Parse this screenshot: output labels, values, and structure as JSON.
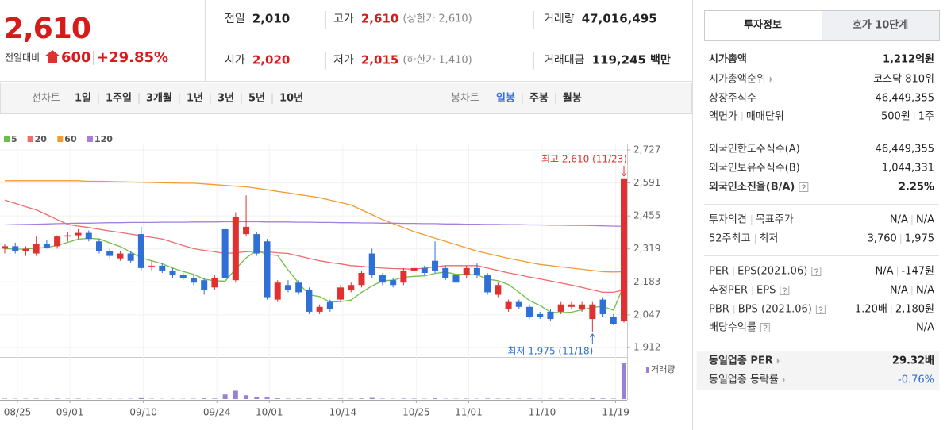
{
  "quote": {
    "price": "2,610",
    "change_label": "전일대비",
    "change": "600",
    "change_rate": "+29.85%"
  },
  "summary": {
    "rows": [
      [
        {
          "label": "전일",
          "value": "2,010"
        },
        {
          "label": "고가",
          "value": "2,610",
          "color": "#d61b1b",
          "note": "(상한가 2,610)"
        },
        {
          "label": "거래량",
          "value": "47,016,495"
        }
      ],
      [
        {
          "label": "시가",
          "value": "2,020",
          "color": "#d61b1b"
        },
        {
          "label": "저가",
          "value": "2,015",
          "color": "#d61b1b",
          "note": "(하한가 1,410)"
        },
        {
          "label": "거래대금",
          "value": "119,245",
          "unit": "백만"
        }
      ]
    ]
  },
  "toolbar": {
    "line_label": "선차트",
    "line_periods": [
      "1일",
      "1주일",
      "3개월",
      "1년",
      "3년",
      "5년",
      "10년"
    ],
    "candle_label": "봉차트",
    "candle_periods": [
      "일봉",
      "주봉",
      "월봉"
    ]
  },
  "chart_data": {
    "type": "candlestick",
    "categories": [
      "08/25",
      null,
      null,
      null,
      null,
      "09/01",
      null,
      null,
      null,
      null,
      null,
      null,
      "09/10",
      null,
      null,
      null,
      null,
      null,
      null,
      "09/24",
      null,
      null,
      null,
      null,
      "10/01",
      null,
      null,
      null,
      null,
      null,
      null,
      "10/14",
      null,
      null,
      null,
      null,
      null,
      null,
      "10/25",
      null,
      null,
      null,
      null,
      "11/01",
      null,
      null,
      null,
      null,
      null,
      null,
      "11/10",
      null,
      null,
      null,
      null,
      null,
      null,
      "11/19",
      null,
      null
    ],
    "open": [
      2320,
      2330,
      2310,
      2300,
      2340,
      2330,
      2370,
      2375,
      2385,
      2350,
      2310,
      2280,
      2300,
      2380,
      2250,
      2250,
      2230,
      2210,
      2200,
      2190,
      2160,
      2400,
      2190,
      2380,
      2380,
      2350,
      2110,
      2170,
      2180,
      2150,
      2060,
      2100,
      2110,
      2150,
      2170,
      2300,
      2210,
      2190,
      2180,
      2230,
      2240,
      2270,
      2240,
      2210,
      2210,
      2240,
      2210,
      2130,
      2070,
      2100,
      2080,
      2050,
      2060,
      2060,
      2080,
      2070,
      2030,
      2110,
      2040,
      2020
    ],
    "high": [
      2340,
      2345,
      2330,
      2370,
      2355,
      2375,
      2390,
      2400,
      2395,
      2360,
      2320,
      2310,
      2310,
      2410,
      2270,
      2260,
      2240,
      2220,
      2210,
      2200,
      2210,
      2410,
      2470,
      2540,
      2390,
      2360,
      2190,
      2190,
      2190,
      2160,
      2090,
      2110,
      2170,
      2180,
      2230,
      2320,
      2220,
      2200,
      2240,
      2280,
      2250,
      2350,
      2250,
      2220,
      2250,
      2260,
      2220,
      2180,
      2110,
      2110,
      2090,
      2060,
      2070,
      2100,
      2100,
      2100,
      2100,
      2120,
      2050,
      2610
    ],
    "low": [
      2300,
      2300,
      2290,
      2290,
      2320,
      2320,
      2350,
      2360,
      2350,
      2300,
      2280,
      2270,
      2260,
      2230,
      2230,
      2220,
      2200,
      2190,
      2170,
      2130,
      2150,
      2190,
      2180,
      2370,
      2290,
      2110,
      2100,
      2140,
      2130,
      2050,
      2050,
      2060,
      2100,
      2140,
      2160,
      2200,
      2170,
      2160,
      2170,
      2220,
      2210,
      2220,
      2190,
      2170,
      2200,
      2200,
      2130,
      2120,
      2060,
      2070,
      2030,
      2030,
      2020,
      2050,
      2070,
      2060,
      1975,
      2040,
      2005,
      2015
    ],
    "close": [
      2330,
      2310,
      2320,
      2340,
      2325,
      2370,
      2375,
      2385,
      2360,
      2310,
      2290,
      2300,
      2270,
      2240,
      2250,
      2230,
      2210,
      2200,
      2180,
      2150,
      2200,
      2200,
      2450,
      2410,
      2300,
      2120,
      2180,
      2150,
      2140,
      2060,
      2080,
      2070,
      2160,
      2170,
      2220,
      2210,
      2180,
      2170,
      2230,
      2240,
      2220,
      2230,
      2200,
      2180,
      2240,
      2210,
      2140,
      2170,
      2100,
      2080,
      2040,
      2040,
      2030,
      2090,
      2090,
      2090,
      2090,
      2050,
      2010,
      2610
    ],
    "up_color": "#e03030",
    "down_color": "#2f6fd6",
    "series": [
      {
        "name": "5",
        "color": "#6cc04a",
        "values": [
          2320,
          2318,
          2318,
          2322,
          2325,
          2333,
          2346,
          2359,
          2363,
          2360,
          2344,
          2329,
          2306,
          2282,
          2270,
          2258,
          2240,
          2226,
          2214,
          2194,
          2188,
          2186,
          2236,
          2282,
          2312,
          2296,
          2292,
          2232,
          2178,
          2130,
          2122,
          2100,
          2102,
          2108,
          2140,
          2166,
          2188,
          2190,
          2202,
          2206,
          2208,
          2218,
          2224,
          2214,
          2214,
          2212,
          2194,
          2188,
          2172,
          2140,
          2106,
          2086,
          2058,
          2056,
          2058,
          2068,
          2078,
          2082,
          2066,
          2170
        ]
      },
      {
        "name": "20",
        "color": "#f06b6b",
        "values": [
          2520,
          2507,
          2493,
          2480,
          2460,
          2440,
          2420,
          2413,
          2407,
          2400,
          2393,
          2387,
          2380,
          2373,
          2367,
          2360,
          2347,
          2333,
          2320,
          2313,
          2307,
          2300,
          2303,
          2307,
          2310,
          2307,
          2303,
          2300,
          2290,
          2280,
          2270,
          2263,
          2257,
          2250,
          2247,
          2243,
          2240,
          2238,
          2237,
          2235,
          2240,
          2245,
          2250,
          2250,
          2250,
          2250,
          2240,
          2230,
          2220,
          2212,
          2203,
          2195,
          2187,
          2178,
          2170,
          2160,
          2150,
          2140,
          2140,
          2150
        ]
      },
      {
        "name": "60",
        "color": "#f59a2e",
        "values": [
          2600,
          2600,
          2600,
          2600,
          2600,
          2600,
          2600,
          2600,
          2598,
          2598,
          2597,
          2596,
          2595,
          2594,
          2593,
          2592,
          2591,
          2590,
          2590,
          2587,
          2584,
          2581,
          2578,
          2575,
          2569,
          2563,
          2556,
          2550,
          2543,
          2537,
          2530,
          2520,
          2510,
          2500,
          2480,
          2460,
          2440,
          2423,
          2407,
          2390,
          2377,
          2363,
          2350,
          2337,
          2323,
          2310,
          2300,
          2290,
          2280,
          2272,
          2263,
          2255,
          2250,
          2245,
          2240,
          2235,
          2230,
          2225,
          2224,
          2225
        ]
      },
      {
        "name": "120",
        "color": "#a77de0",
        "values": [
          2418,
          2419,
          2420,
          2421,
          2422,
          2423,
          2424,
          2425,
          2425,
          2426,
          2427,
          2427,
          2428,
          2428,
          2428,
          2429,
          2429,
          2429,
          2430,
          2430,
          2430,
          2431,
          2431,
          2431,
          2431,
          2430,
          2430,
          2430,
          2429,
          2429,
          2428,
          2428,
          2427,
          2427,
          2426,
          2426,
          2425,
          2425,
          2424,
          2424,
          2423,
          2423,
          2422,
          2422,
          2421,
          2421,
          2420,
          2420,
          2419,
          2419,
          2418,
          2418,
          2417,
          2417,
          2416,
          2416,
          2415,
          2414,
          2413,
          2412
        ]
      }
    ],
    "ylim": [
      1883,
      2750
    ],
    "yticks": [
      {
        "value": 1912,
        "label": "1,912"
      },
      {
        "value": 2047,
        "label": "2,047"
      },
      {
        "value": 2183,
        "label": "2,183"
      },
      {
        "value": 2319,
        "label": "2,319"
      },
      {
        "value": 2455,
        "label": "2,455"
      },
      {
        "value": 2591,
        "label": "2,591"
      },
      {
        "value": 2727,
        "label": "2,727"
      }
    ],
    "high_label": "최고 2,610 (11/23)",
    "low_label": "최저 1,975 (11/18)",
    "volume": {
      "name": "거래량",
      "color": "#9a80d4",
      "values": [
        500000,
        400000,
        400000,
        500000,
        300000,
        600000,
        400000,
        500000,
        300000,
        400000,
        300000,
        300000,
        400000,
        1200000,
        400000,
        300000,
        300000,
        300000,
        400000,
        900000,
        600000,
        6000000,
        11000000,
        5000000,
        3000000,
        2000000,
        900000,
        500000,
        500000,
        700000,
        500000,
        400000,
        600000,
        500000,
        700000,
        1500000,
        500000,
        400000,
        600000,
        500000,
        400000,
        900000,
        400000,
        400000,
        500000,
        400000,
        600000,
        500000,
        500000,
        400000,
        500000,
        300000,
        400000,
        500000,
        400000,
        300000,
        900000,
        700000,
        500000,
        47016495
      ]
    }
  },
  "sidebar": {
    "tabs": [
      "투자정보",
      "호가 10단계"
    ],
    "groups": [
      [
        {
          "label": [
            "시가총액"
          ],
          "value": [
            "1,212억원"
          ],
          "strong": true
        },
        {
          "label": [
            "시가총액순위"
          ],
          "value": [
            "코스닥 810위"
          ],
          "link": true
        },
        {
          "label": [
            "상장주식수"
          ],
          "value": [
            "46,449,355"
          ]
        },
        {
          "label": [
            "액면가",
            "매매단위"
          ],
          "value": [
            "500원",
            "1주"
          ]
        }
      ],
      [
        {
          "label": [
            "외국인한도주식수(A)"
          ],
          "value": [
            "46,449,355"
          ]
        },
        {
          "label": [
            "외국인보유주식수(B)"
          ],
          "value": [
            "1,044,331"
          ]
        },
        {
          "label": [
            "외국인소진율(B/A)"
          ],
          "value": [
            "2.25%"
          ],
          "strong": true,
          "help": true
        }
      ],
      [
        {
          "label": [
            "투자의견",
            "목표주가"
          ],
          "value": [
            "N/A",
            "N/A"
          ]
        },
        {
          "label": [
            "52주최고",
            "최저"
          ],
          "value": [
            "3,760",
            "1,975"
          ]
        }
      ],
      [
        {
          "label": [
            "PER",
            "EPS(2021.06)"
          ],
          "value": [
            "N/A",
            "-147원"
          ],
          "help": true
        },
        {
          "label": [
            "추정PER",
            "EPS"
          ],
          "value": [
            "N/A",
            "N/A"
          ],
          "help": true
        },
        {
          "label": [
            "PBR",
            "BPS (2021.06)"
          ],
          "value": [
            "1.20배",
            "2,180원"
          ],
          "help": true
        },
        {
          "label": [
            "배당수익률"
          ],
          "value": [
            "N/A"
          ],
          "help": true
        }
      ],
      [
        {
          "label": [
            "동일업종 PER"
          ],
          "value": [
            "29.32배"
          ],
          "link": true,
          "strong": true
        },
        {
          "label": [
            "동일업종 등락률"
          ],
          "value": [
            "-0.76%"
          ],
          "link": true,
          "color": "#2f6fd6"
        }
      ]
    ]
  }
}
